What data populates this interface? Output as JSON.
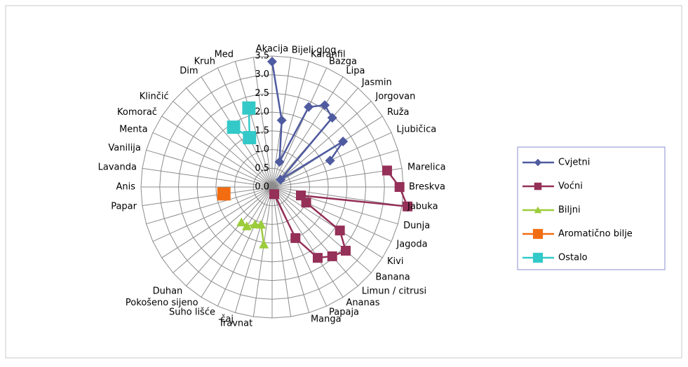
{
  "chart_data": {
    "type": "radar",
    "categories": [
      "Akacija",
      "Bijeli glog",
      "Karanfil",
      "Bazga",
      "Lipa",
      "Jasmin",
      "Jorgovan",
      "Ruža",
      "Ljubičica",
      null,
      "Marelica",
      "Breskva",
      "Jabuka",
      "Dunja",
      "Jagoda",
      "Kivi",
      "Banana",
      "Limun / citrusi",
      "Ananas",
      "Papaja",
      "Manga",
      null,
      null,
      "Travnat",
      "čaj",
      "Suho lišće",
      "Pokošeno sijeno",
      "Duhan",
      null,
      null,
      null,
      null,
      "Papar",
      "Anis",
      "Lavanda",
      "Vanilija",
      "Menta",
      "Komorač",
      "Klinčić",
      null,
      "Dim",
      "Kruh",
      "Med",
      null
    ],
    "series": [
      {
        "name": "Cvjetni",
        "color": "#4f5ba0",
        "marker": "diamond",
        "values": [
          3.35,
          1.8,
          0.7,
          2.35,
          2.6,
          2.45,
          0.3,
          2.25,
          1.7,
          null,
          null,
          null,
          null,
          null,
          null,
          null,
          null,
          null,
          null,
          null,
          null,
          null,
          null,
          null,
          null,
          null,
          null,
          null,
          null,
          null,
          null,
          null,
          null,
          null,
          null,
          null,
          null,
          null,
          null,
          null,
          null,
          null,
          null,
          null
        ]
      },
      {
        "name": "Voćni",
        "color": "#953058",
        "marker": "square",
        "values": [
          null,
          null,
          null,
          null,
          null,
          null,
          null,
          null,
          null,
          null,
          3.1,
          3.4,
          3.65,
          0.8,
          1.0,
          2.15,
          2.6,
          2.45,
          2.25,
          1.5,
          0.2,
          null,
          null,
          null,
          null,
          null,
          null,
          null,
          null,
          null,
          null,
          null,
          null,
          null,
          null,
          null,
          null,
          null,
          null,
          null,
          null,
          null,
          null,
          null
        ]
      },
      {
        "name": "Biljni",
        "color": "#9bcc3a",
        "marker": "triangle",
        "values": [
          null,
          null,
          null,
          null,
          null,
          null,
          null,
          null,
          null,
          null,
          null,
          null,
          null,
          null,
          null,
          null,
          null,
          null,
          null,
          null,
          null,
          null,
          null,
          1.55,
          1.05,
          1.1,
          1.25,
          1.25,
          null,
          null,
          null,
          null,
          null,
          null,
          null,
          null,
          null,
          null,
          null,
          null,
          null,
          null,
          null,
          null
        ]
      },
      {
        "name": "Aromatično bilje",
        "color": "#f26d12",
        "marker": "square",
        "values": [
          null,
          null,
          null,
          null,
          null,
          null,
          null,
          null,
          null,
          null,
          null,
          null,
          null,
          null,
          null,
          null,
          null,
          null,
          null,
          null,
          null,
          null,
          null,
          null,
          null,
          null,
          null,
          null,
          null,
          null,
          null,
          null,
          1.3,
          null,
          null,
          null,
          null,
          null,
          null,
          null,
          null,
          null,
          null,
          null
        ]
      },
      {
        "name": "Ostalo",
        "color": "#33c9c9",
        "marker": "square",
        "values": [
          null,
          null,
          null,
          null,
          null,
          null,
          null,
          null,
          null,
          null,
          null,
          null,
          null,
          null,
          null,
          null,
          null,
          null,
          null,
          null,
          null,
          null,
          null,
          null,
          null,
          null,
          null,
          null,
          null,
          null,
          null,
          null,
          null,
          null,
          null,
          null,
          null,
          null,
          null,
          null,
          1.9,
          1.45,
          2.2,
          null
        ]
      }
    ],
    "ylim": [
      0,
      3.5
    ],
    "yticks": [
      {
        "value": 0,
        "label": "0.0"
      },
      0.5,
      {
        "value": 1,
        "label": "1.0"
      },
      1.5,
      {
        "value": 2,
        "label": "2.0"
      },
      2.5,
      {
        "value": 3,
        "label": "3.0"
      },
      3.5
    ],
    "grid": true,
    "legend": "right"
  }
}
